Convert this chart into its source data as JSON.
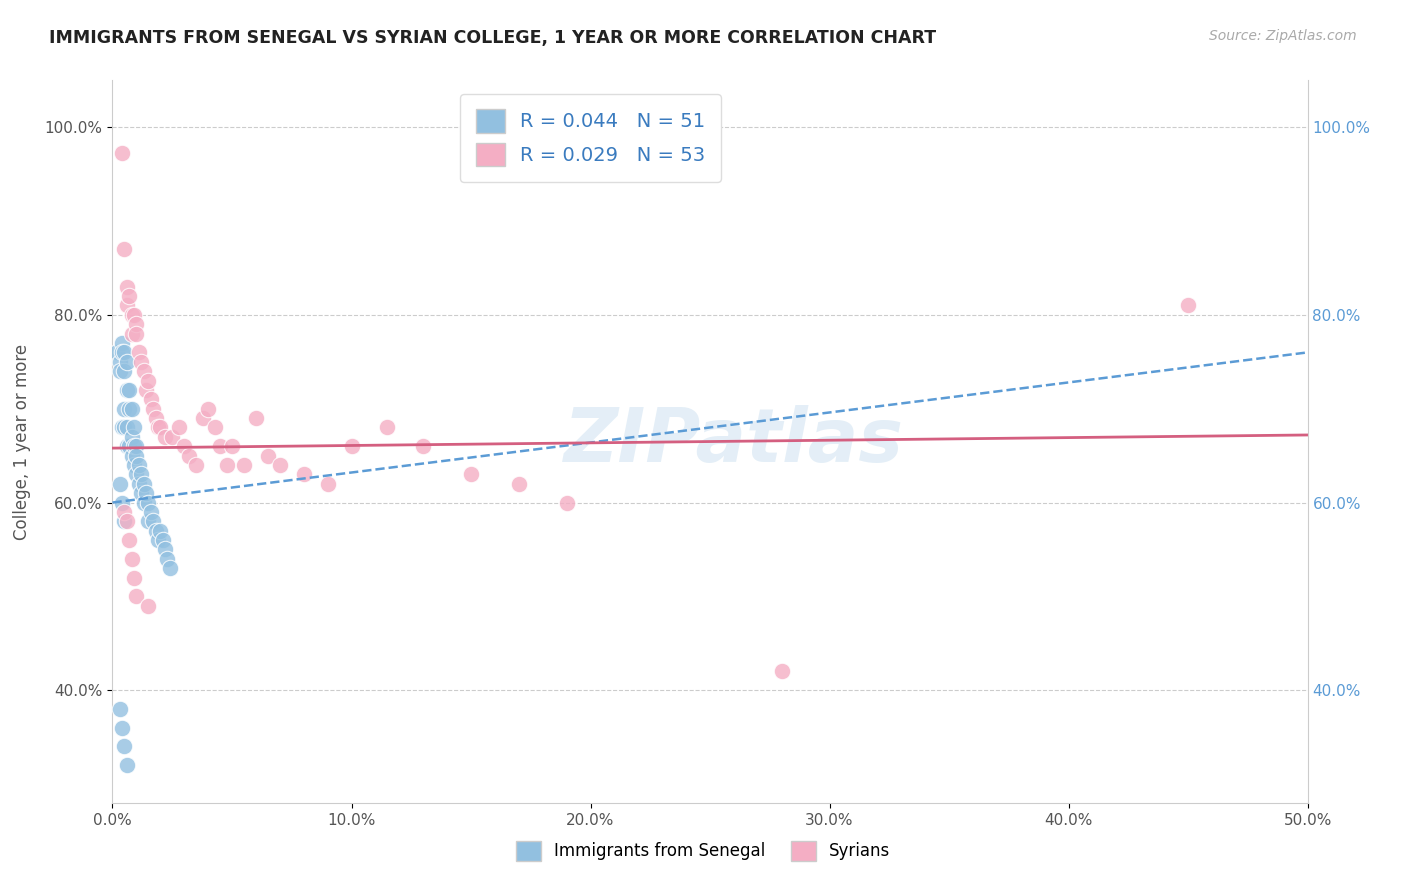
{
  "title": "IMMIGRANTS FROM SENEGAL VS SYRIAN COLLEGE, 1 YEAR OR MORE CORRELATION CHART",
  "source": "Source: ZipAtlas.com",
  "ylabel": "College, 1 year or more",
  "xlim": [
    0.0,
    0.5
  ],
  "ylim": [
    0.28,
    1.05
  ],
  "xtick_labels": [
    "0.0%",
    "10.0%",
    "20.0%",
    "30.0%",
    "40.0%",
    "50.0%"
  ],
  "xtick_vals": [
    0.0,
    0.1,
    0.2,
    0.3,
    0.4,
    0.5
  ],
  "ytick_labels": [
    "40.0%",
    "60.0%",
    "80.0%",
    "100.0%"
  ],
  "ytick_vals": [
    0.4,
    0.6,
    0.8,
    1.0
  ],
  "blue_color": "#92c0e0",
  "pink_color": "#f4aec4",
  "blue_line_color": "#5b9bd5",
  "pink_line_color": "#d45f80",
  "blue_label": "Immigrants from Senegal",
  "pink_label": "Syrians",
  "legend_R_blue": "R = 0.044",
  "legend_N_blue": "N = 51",
  "legend_R_pink": "R = 0.029",
  "legend_N_pink": "N = 53",
  "watermark": "ZIPatlas",
  "background_color": "#ffffff",
  "blue_line_x": [
    0.0,
    0.5
  ],
  "blue_line_y": [
    0.6,
    0.76
  ],
  "pink_line_x": [
    0.0,
    0.5
  ],
  "pink_line_y": [
    0.658,
    0.672
  ],
  "blue_x": [
    0.002,
    0.003,
    0.003,
    0.004,
    0.004,
    0.004,
    0.005,
    0.005,
    0.005,
    0.005,
    0.006,
    0.006,
    0.006,
    0.006,
    0.007,
    0.007,
    0.007,
    0.008,
    0.008,
    0.008,
    0.009,
    0.009,
    0.009,
    0.01,
    0.01,
    0.01,
    0.011,
    0.011,
    0.012,
    0.012,
    0.013,
    0.013,
    0.014,
    0.015,
    0.015,
    0.016,
    0.017,
    0.018,
    0.019,
    0.02,
    0.021,
    0.022,
    0.023,
    0.024,
    0.003,
    0.004,
    0.005,
    0.006,
    0.003,
    0.004,
    0.005
  ],
  "blue_y": [
    0.76,
    0.75,
    0.74,
    0.77,
    0.76,
    0.68,
    0.76,
    0.74,
    0.7,
    0.68,
    0.75,
    0.72,
    0.68,
    0.66,
    0.72,
    0.7,
    0.66,
    0.7,
    0.67,
    0.65,
    0.68,
    0.66,
    0.64,
    0.66,
    0.65,
    0.63,
    0.64,
    0.62,
    0.63,
    0.61,
    0.62,
    0.6,
    0.61,
    0.6,
    0.58,
    0.59,
    0.58,
    0.57,
    0.56,
    0.57,
    0.56,
    0.55,
    0.54,
    0.53,
    0.38,
    0.36,
    0.34,
    0.32,
    0.62,
    0.6,
    0.58
  ],
  "pink_x": [
    0.004,
    0.005,
    0.006,
    0.006,
    0.007,
    0.008,
    0.008,
    0.009,
    0.01,
    0.01,
    0.011,
    0.012,
    0.013,
    0.014,
    0.015,
    0.016,
    0.017,
    0.018,
    0.019,
    0.02,
    0.022,
    0.025,
    0.028,
    0.03,
    0.032,
    0.035,
    0.038,
    0.04,
    0.043,
    0.045,
    0.048,
    0.05,
    0.055,
    0.06,
    0.065,
    0.07,
    0.08,
    0.09,
    0.1,
    0.115,
    0.13,
    0.15,
    0.17,
    0.19,
    0.28,
    0.45,
    0.005,
    0.006,
    0.007,
    0.008,
    0.009,
    0.01,
    0.015
  ],
  "pink_y": [
    0.972,
    0.87,
    0.83,
    0.81,
    0.82,
    0.8,
    0.78,
    0.8,
    0.79,
    0.78,
    0.76,
    0.75,
    0.74,
    0.72,
    0.73,
    0.71,
    0.7,
    0.69,
    0.68,
    0.68,
    0.67,
    0.67,
    0.68,
    0.66,
    0.65,
    0.64,
    0.69,
    0.7,
    0.68,
    0.66,
    0.64,
    0.66,
    0.64,
    0.69,
    0.65,
    0.64,
    0.63,
    0.62,
    0.66,
    0.68,
    0.66,
    0.63,
    0.62,
    0.6,
    0.42,
    0.81,
    0.59,
    0.58,
    0.56,
    0.54,
    0.52,
    0.5,
    0.49
  ]
}
